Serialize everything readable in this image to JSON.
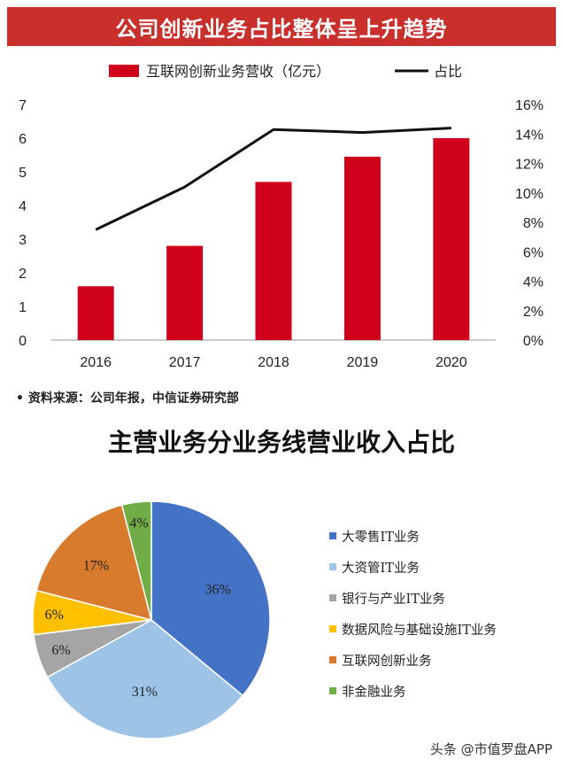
{
  "banner_title": "公司创新业务占比整体呈上升趋势",
  "source_note": "资料来源：公司年报，中信证券研究部",
  "pie_title": "主营业务分业务线营业收入占比",
  "watermark": "头条 @市值罗盘APP",
  "chart_data": [
    {
      "type": "bar",
      "categories": [
        "2016",
        "2017",
        "2018",
        "2019",
        "2020"
      ],
      "series": [
        {
          "name": "互联网创新业务营收（亿元）",
          "type": "bar",
          "axis": "left",
          "color": "#d0021b",
          "values": [
            1.6,
            2.8,
            4.7,
            5.45,
            6.0
          ]
        },
        {
          "name": "占比",
          "type": "line",
          "axis": "right",
          "color": "#111111",
          "values": [
            7.5,
            10.4,
            14.3,
            14.1,
            14.4
          ]
        }
      ],
      "ylim_left": [
        0,
        7
      ],
      "left_ticks": [
        "0",
        "1",
        "2",
        "3",
        "4",
        "5",
        "6",
        "7"
      ],
      "ylim_right": [
        0,
        16
      ],
      "right_ticks": [
        "0%",
        "2%",
        "4%",
        "6%",
        "8%",
        "10%",
        "12%",
        "14%",
        "16%"
      ],
      "legend_position": "top"
    },
    {
      "type": "pie",
      "slices": [
        {
          "label": "大零售IT业务",
          "value": 36,
          "text": "36%",
          "color": "#4472c4"
        },
        {
          "label": "大资管IT业务",
          "value": 31,
          "text": "31%",
          "color": "#9dc3e6"
        },
        {
          "label": "银行与产业IT业务",
          "value": 6,
          "text": "6%",
          "color": "#a5a5a5"
        },
        {
          "label": "数据风险与基础设施IT业务",
          "value": 6,
          "text": "6%",
          "color": "#ffc000"
        },
        {
          "label": "互联网创新业务",
          "value": 17,
          "text": "17%",
          "color": "#d97b2c"
        },
        {
          "label": "非金融业务",
          "value": 4,
          "text": "4%",
          "color": "#70ad47"
        }
      ],
      "legend_position": "right"
    }
  ]
}
